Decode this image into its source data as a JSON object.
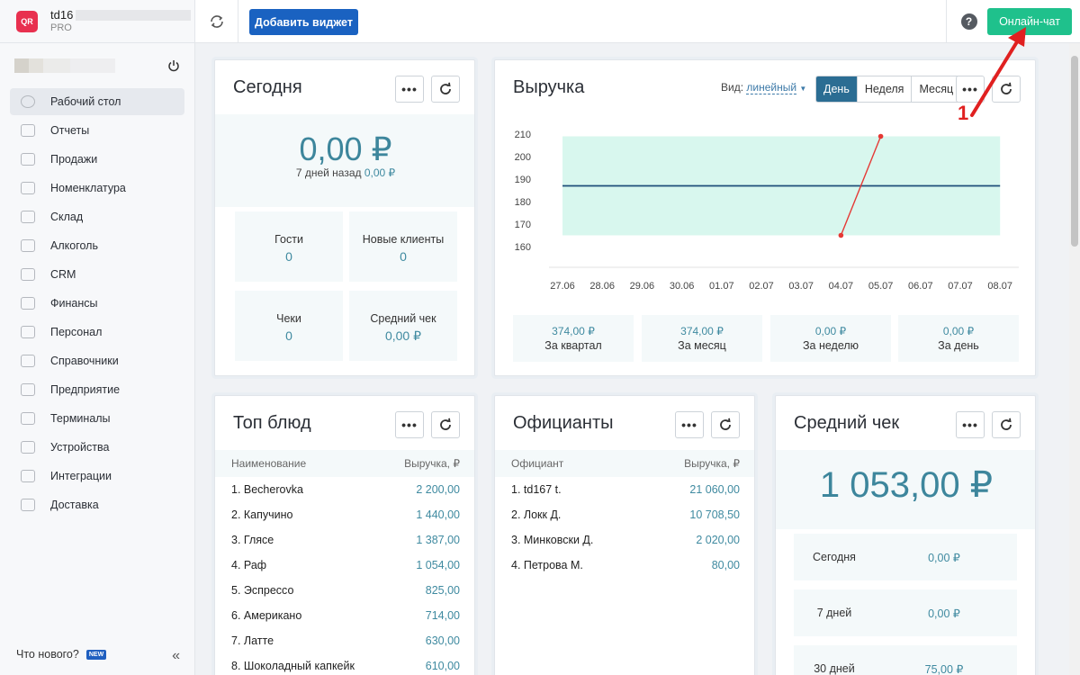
{
  "brand": {
    "name": "td16",
    "plan": "PRO",
    "logo": "QR"
  },
  "topbar": {
    "add_widget": "Добавить виджет",
    "help": "?",
    "chat": "Онлайн-чат"
  },
  "nav": [
    {
      "label": "Рабочий стол",
      "icon": "dashboard-icon",
      "active": true
    },
    {
      "label": "Отчеты",
      "icon": "reports-icon"
    },
    {
      "label": "Продажи",
      "icon": "sales-icon"
    },
    {
      "label": "Номенклатура",
      "icon": "nomenclature-icon"
    },
    {
      "label": "Склад",
      "icon": "warehouse-icon"
    },
    {
      "label": "Алкоголь",
      "icon": "alcohol-icon"
    },
    {
      "label": "CRM",
      "icon": "crm-icon"
    },
    {
      "label": "Финансы",
      "icon": "finance-icon"
    },
    {
      "label": "Персонал",
      "icon": "staff-icon"
    },
    {
      "label": "Справочники",
      "icon": "reference-icon"
    },
    {
      "label": "Предприятие",
      "icon": "enterprise-icon"
    },
    {
      "label": "Терминалы",
      "icon": "terminal-icon"
    },
    {
      "label": "Устройства",
      "icon": "devices-icon"
    },
    {
      "label": "Интеграции",
      "icon": "integrations-icon"
    },
    {
      "label": "Доставка",
      "icon": "delivery-icon"
    }
  ],
  "footer": {
    "whats_new": "Что нового?",
    "badge": "NEW",
    "collapse": "«"
  },
  "today": {
    "title": "Сегодня",
    "amount": "0,00 ₽",
    "sub_prefix": "7 дней назад",
    "sub_value": "0,00 ₽",
    "stats": [
      {
        "label": "Гости",
        "value": "0"
      },
      {
        "label": "Новые клиенты",
        "value": "0"
      },
      {
        "label": "Чеки",
        "value": "0"
      },
      {
        "label": "Средний чек",
        "value": "0,00 ₽"
      }
    ]
  },
  "revenue": {
    "title": "Выручка",
    "view_label": "Вид:",
    "view_value": "линейный",
    "tabs": [
      {
        "label": "День",
        "active": true
      },
      {
        "label": "Неделя"
      },
      {
        "label": "Месяц"
      }
    ],
    "periods": [
      {
        "value": "374,00 ₽",
        "label": "За квартал"
      },
      {
        "value": "374,00 ₽",
        "label": "За месяц"
      },
      {
        "value": "0,00 ₽",
        "label": "За неделю"
      },
      {
        "value": "0,00 ₽",
        "label": "За день"
      }
    ]
  },
  "chart_data": {
    "type": "line",
    "title": "Выручка",
    "x": [
      "27.06",
      "28.06",
      "29.06",
      "30.06",
      "01.07",
      "02.07",
      "03.07",
      "04.07",
      "05.07",
      "06.07",
      "07.07",
      "08.07"
    ],
    "y_ticks": [
      160,
      170,
      180,
      190,
      200,
      210
    ],
    "ylim": [
      156,
      212
    ],
    "series": [
      {
        "points": [
          {
            "x": "04.07",
            "y": 165
          },
          {
            "x": "05.07",
            "y": 209
          }
        ],
        "color": "#e53935"
      }
    ],
    "band": {
      "from_x": "27.06",
      "to_x": "08.07",
      "low": 165,
      "high": 209,
      "color": "#d8f7ee"
    },
    "average": {
      "value": 187,
      "color": "#1f4e79"
    },
    "grid": false
  },
  "top_dishes": {
    "title": "Топ блюд",
    "col_name": "Наименование",
    "col_value": "Выручка, ₽",
    "rows": [
      {
        "name": "1. Becherovka",
        "value": "2 200,00"
      },
      {
        "name": "2. Капучино",
        "value": "1 440,00"
      },
      {
        "name": "3. Глясе",
        "value": "1 387,00"
      },
      {
        "name": "4. Раф",
        "value": "1 054,00"
      },
      {
        "name": "5. Эспрессо",
        "value": "825,00"
      },
      {
        "name": "6. Американо",
        "value": "714,00"
      },
      {
        "name": "7. Латте",
        "value": "630,00"
      },
      {
        "name": "8. Шоколадный капкейк",
        "value": "610,00"
      }
    ]
  },
  "waiters": {
    "title": "Официанты",
    "col_name": "Официант",
    "col_value": "Выручка, ₽",
    "rows": [
      {
        "name": "1. td167 t.",
        "value": "21 060,00"
      },
      {
        "name": "2. Локк Д.",
        "value": "10 708,50"
      },
      {
        "name": "3. Минковски Д.",
        "value": "2 020,00"
      },
      {
        "name": "4. Петрова М.",
        "value": "80,00"
      }
    ]
  },
  "avg_check": {
    "title": "Средний чек",
    "amount": "1 053,00 ₽",
    "rows": [
      {
        "label": "Сегодня",
        "value": "0,00 ₽"
      },
      {
        "label": "7 дней",
        "value": "0,00 ₽"
      },
      {
        "label": "30 дней",
        "value": "75,00 ₽"
      }
    ]
  },
  "annotation": {
    "number": "1",
    "color": "#e02020"
  }
}
